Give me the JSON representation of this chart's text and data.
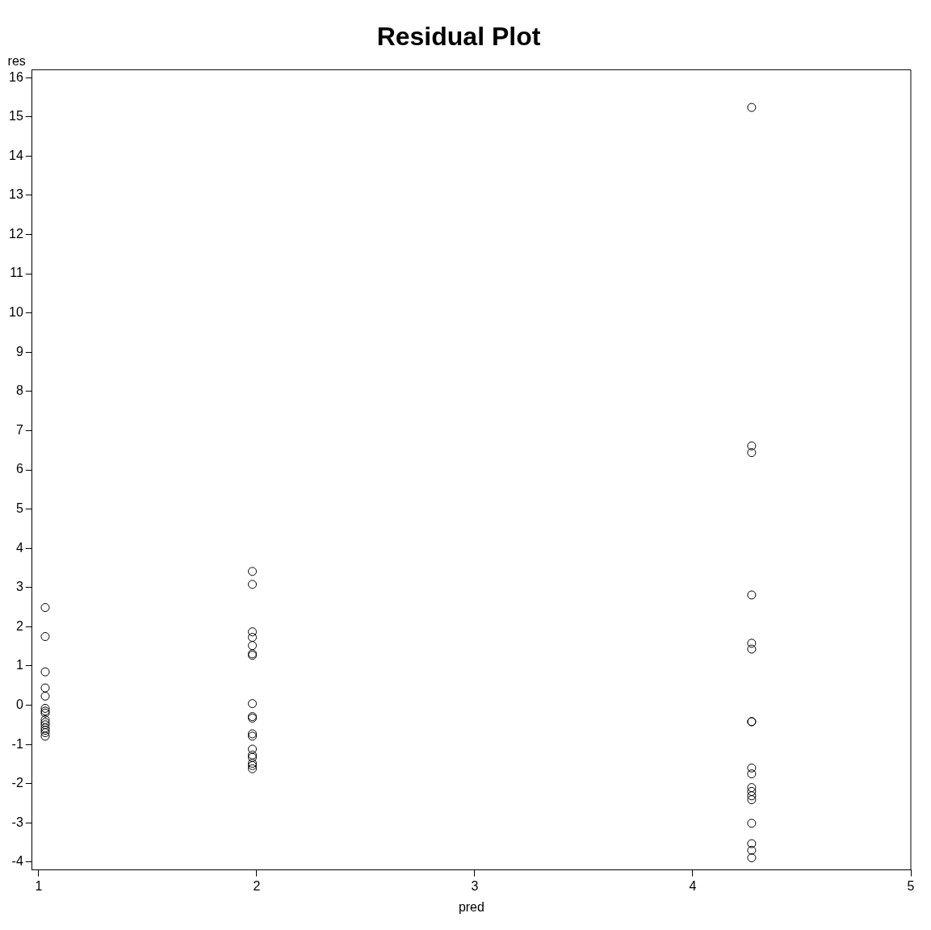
{
  "chart_data": {
    "type": "scatter",
    "title": "Residual Plot",
    "xlabel": "pred",
    "ylabel": "res",
    "xlim": [
      0.97,
      5
    ],
    "xticks": [
      1,
      2,
      3,
      4,
      5
    ],
    "ylim": [
      -4.2,
      16.2
    ],
    "yticks": [
      -4,
      -3,
      -2,
      -1,
      0,
      1,
      2,
      3,
      4,
      5,
      6,
      7,
      8,
      9,
      10,
      11,
      12,
      13,
      14,
      15,
      16
    ],
    "marker": "circle",
    "grid": false,
    "legend": false,
    "series": [
      {
        "color": "#000000",
        "x": [
          1.03,
          1.03,
          1.03,
          1.03,
          1.03,
          1.03,
          1.03,
          1.03,
          1.03,
          1.03,
          1.03,
          1.03,
          1.03,
          1.03,
          1.03,
          1.98,
          1.98,
          1.98,
          1.98,
          1.98,
          1.98,
          1.98,
          1.98,
          1.98,
          1.98,
          1.98,
          1.98,
          1.98,
          1.98,
          1.98,
          1.98,
          1.98,
          1.98,
          4.27,
          4.27,
          4.27,
          4.27,
          4.27,
          4.27,
          4.27,
          4.27,
          4.27,
          4.27,
          4.27,
          4.27,
          4.27,
          4.27,
          4.27,
          4.27,
          4.27,
          4.27
        ],
        "values": [
          2.49,
          1.75,
          0.85,
          0.44,
          0.23,
          -0.08,
          -0.15,
          -0.2,
          -0.37,
          -0.44,
          -0.5,
          -0.58,
          -0.64,
          -0.7,
          -0.79,
          3.41,
          3.08,
          1.87,
          1.73,
          1.52,
          1.31,
          1.27,
          0.04,
          -0.29,
          -0.33,
          -0.73,
          -0.79,
          -1.12,
          -1.27,
          -1.33,
          -1.48,
          -1.54,
          -1.62,
          15.24,
          6.61,
          6.44,
          2.81,
          1.58,
          1.43,
          -0.42,
          -0.42,
          -1.6,
          -1.75,
          -2.1,
          -2.2,
          -2.31,
          -2.41,
          -3.01,
          -3.53,
          -3.7,
          -3.89
        ]
      }
    ]
  }
}
